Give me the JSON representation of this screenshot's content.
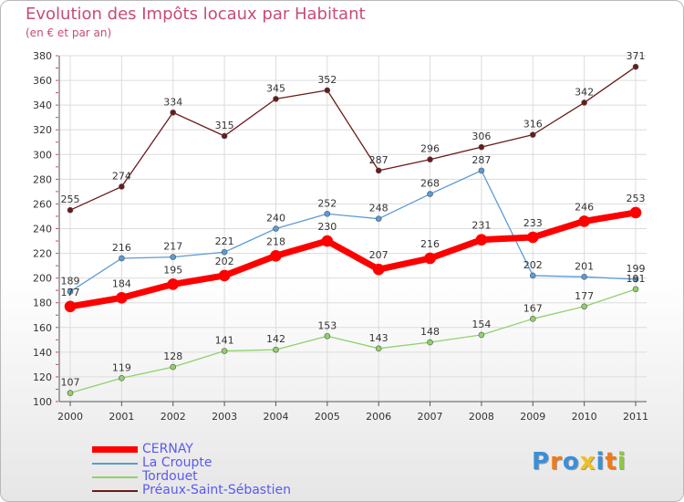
{
  "chart_data": {
    "type": "line",
    "title": "Evolution des Impôts locaux par Habitant",
    "subtitle": "(en € et par an)",
    "xlabel": "",
    "ylabel": "",
    "categories": [
      "2000",
      "2001",
      "2002",
      "2003",
      "2004",
      "2005",
      "2006",
      "2007",
      "2008",
      "2009",
      "2010",
      "2011"
    ],
    "ylim": [
      100,
      380
    ],
    "yticks": [
      100,
      120,
      140,
      160,
      180,
      200,
      220,
      240,
      260,
      280,
      300,
      320,
      340,
      360,
      380
    ],
    "grid": true,
    "legend_position": "bottom-left",
    "series": [
      {
        "name": "Préaux-Saint-Sébastien",
        "color": "#6b1a1a",
        "values": [
          255,
          274,
          334,
          315,
          345,
          352,
          287,
          296,
          306,
          316,
          342,
          371
        ],
        "labels": [
          "255",
          "274",
          "334",
          "315",
          "345",
          "352",
          "287",
          "296",
          "306",
          "316",
          "342",
          "371"
        ]
      },
      {
        "name": "La Croupte",
        "color": "#5b9bd5",
        "values": [
          189,
          216,
          217,
          221,
          240,
          252,
          248,
          268,
          287,
          202,
          201,
          199
        ],
        "labels": [
          "189",
          "216",
          "217",
          "221",
          "240",
          "252",
          "248",
          "268",
          "287",
          "202",
          "201",
          "199"
        ]
      },
      {
        "name": "Tordouet",
        "color": "#8fd16a",
        "values": [
          107,
          119,
          128,
          141,
          142,
          153,
          143,
          148,
          154,
          167,
          177,
          191
        ],
        "labels": [
          "107",
          "119",
          "128",
          "141",
          "142",
          "153",
          "143",
          "148",
          "154",
          "167",
          "177",
          "191"
        ]
      },
      {
        "name": "CERNAY",
        "color": "#ff0000",
        "values": [
          177,
          184,
          195,
          202,
          218,
          230,
          207,
          216,
          231,
          233,
          246,
          253
        ],
        "labels": [
          "177",
          "184",
          "195",
          "202",
          "218",
          "230",
          "207",
          "216",
          "231",
          "233",
          "246",
          "253"
        ]
      }
    ],
    "legend": [
      {
        "name": "CERNAY",
        "color": "#ff0000"
      },
      {
        "name": "La Croupte",
        "color": "#5b9bd5"
      },
      {
        "name": "Tordouet",
        "color": "#8fd16a"
      },
      {
        "name": "Préaux-Saint-Sébastien",
        "color": "#6b1a1a"
      }
    ]
  },
  "logo": {
    "letters": [
      "P",
      "r",
      "o",
      "x",
      "i",
      "t",
      "i"
    ],
    "colors": [
      "#3a8fd8",
      "#f07a1a",
      "#3a8fd8",
      "#f0c020",
      "#3a8fd8",
      "#f07a1a",
      "#8fc840"
    ]
  }
}
